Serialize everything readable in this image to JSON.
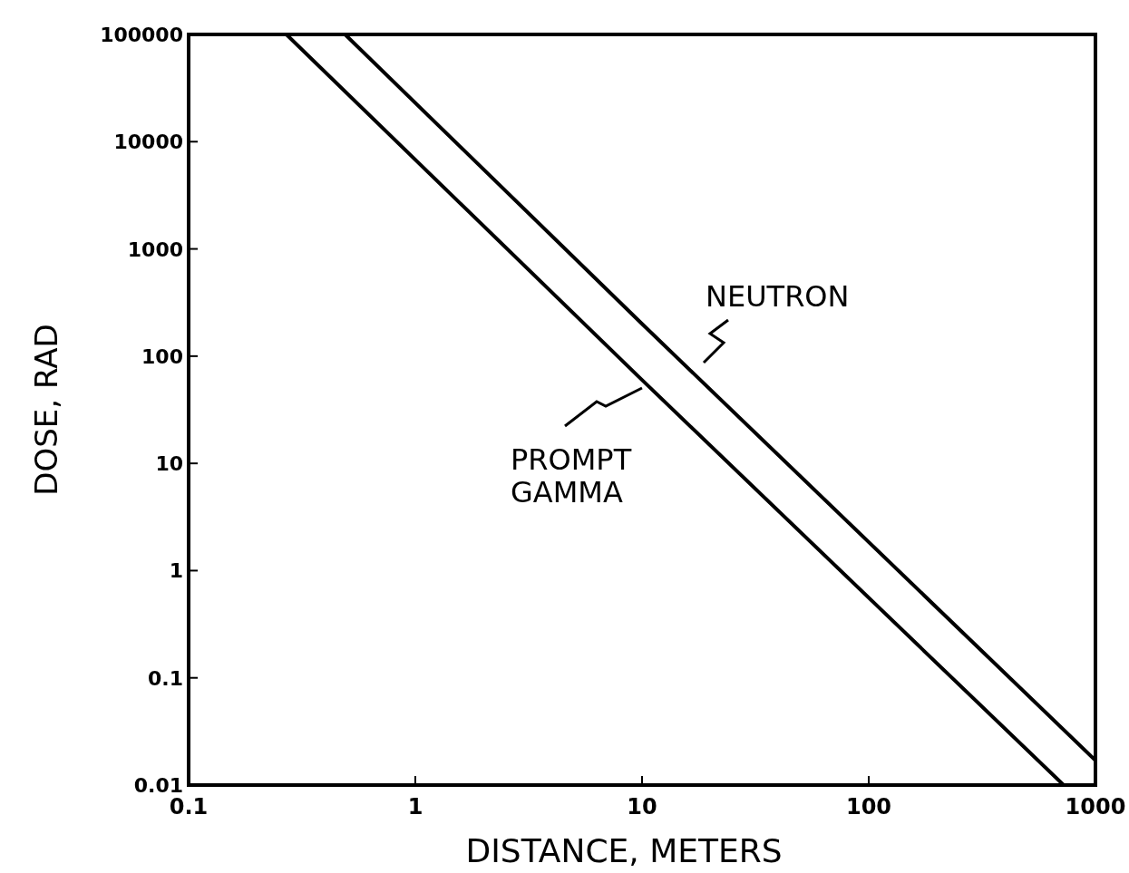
{
  "chart_data": {
    "type": "line",
    "xlabel": "DISTANCE, METERS",
    "ylabel": "DOSE, RAD",
    "log": "xy",
    "grid": false,
    "line_style": "solid",
    "xlim": [
      0.1,
      1000
    ],
    "xticks": [
      0.1,
      1,
      10,
      100,
      1000
    ],
    "ylim": [
      0.01,
      100000
    ],
    "yticks": [
      0.01,
      0.1,
      1,
      10,
      100,
      1000,
      10000,
      100000
    ],
    "series": [
      {
        "name": "NEUTRON",
        "color": "#000000",
        "x": [
          0.49,
          10,
          1000
        ],
        "values": [
          100000,
          200,
          0.017
        ]
      },
      {
        "name": "PROMPT GAMMA",
        "color": "#000000",
        "x": [
          0.27,
          10,
          724
        ],
        "values": [
          100000,
          60,
          0.01
        ]
      }
    ]
  }
}
